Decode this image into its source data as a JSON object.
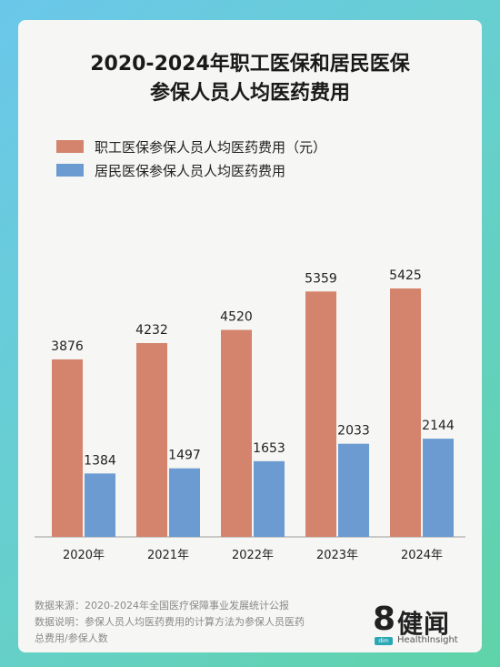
{
  "chart_data": {
    "type": "bar",
    "title": "2020-2024年职工医保和居民医保",
    "subtitle": "参保人员人均医药费用",
    "categories": [
      "2020年",
      "2021年",
      "2022年",
      "2023年",
      "2024年"
    ],
    "series": [
      {
        "name": "职工医保参保人员人均医药费用（元）",
        "color": "#d4846c",
        "values": [
          3876,
          4232,
          4520,
          5359,
          5425
        ]
      },
      {
        "name": "居民医保参保人员人均医药费用",
        "color": "#6b9bd1",
        "values": [
          1384,
          1497,
          1653,
          2033,
          2144
        ]
      }
    ],
    "ylim": [
      0,
      6000
    ],
    "grid": false,
    "legend": "top-left"
  },
  "footer": {
    "source": "数据来源：2020-2024年全国医疗保障事业发展统计公报",
    "note_line1": "数据说明：参保人员人均医药费用的计算方法为参保人员医药",
    "note_line2": "总费用/参保人数"
  },
  "logo": {
    "number": "8",
    "name": "健闻",
    "badge": "dim",
    "subtitle": "HealthInsight"
  },
  "colors": {
    "accent": "#2aa8b5"
  }
}
